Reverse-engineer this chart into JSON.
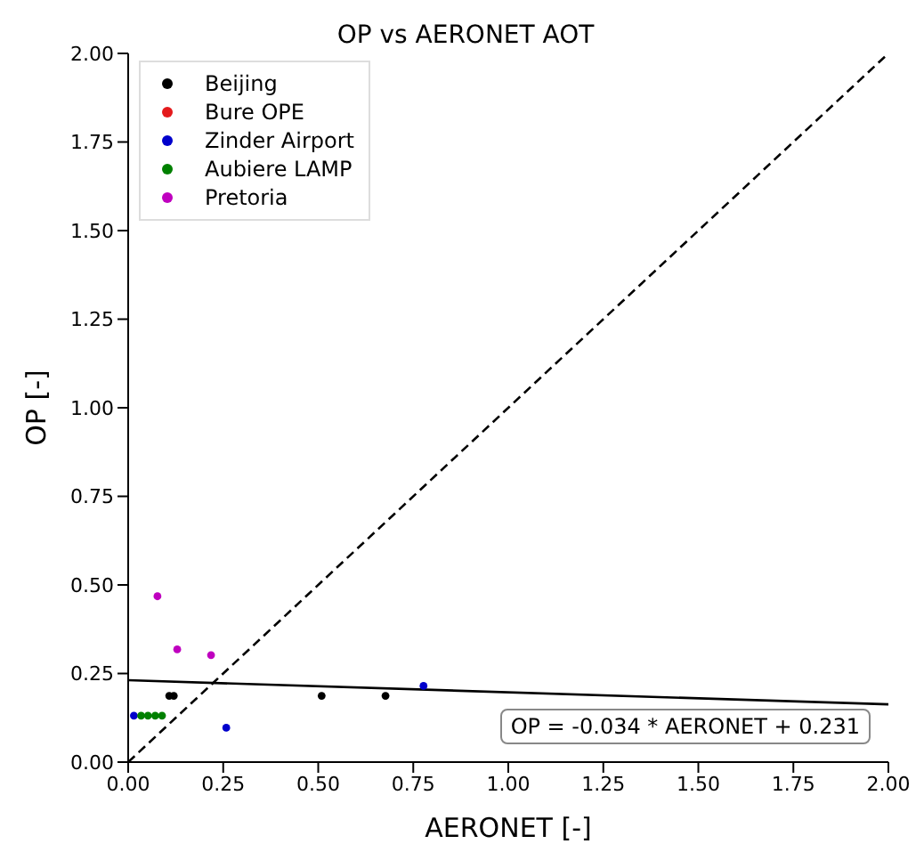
{
  "chart_data": {
    "type": "scatter",
    "title": "OP vs AERONET AOT",
    "xlabel": "AERONET [-]",
    "ylabel": "OP [-]",
    "xlim": [
      0,
      2
    ],
    "ylim": [
      0,
      2
    ],
    "xticks": [
      {
        "value": 0,
        "label": "0.00"
      },
      {
        "value": 0.25,
        "label": "0.25"
      },
      {
        "value": 0.5,
        "label": "0.50"
      },
      {
        "value": 0.75,
        "label": "0.75"
      },
      {
        "value": 1,
        "label": "1.00"
      },
      {
        "value": 1.25,
        "label": "1.25"
      },
      {
        "value": 1.5,
        "label": "1.50"
      },
      {
        "value": 1.75,
        "label": "1.75"
      },
      {
        "value": 2,
        "label": "2.00"
      }
    ],
    "yticks": [
      {
        "value": 0,
        "label": "0.00"
      },
      {
        "value": 0.25,
        "label": "0.25"
      },
      {
        "value": 0.5,
        "label": "0.50"
      },
      {
        "value": 0.75,
        "label": "0.75"
      },
      {
        "value": 1,
        "label": "1.00"
      },
      {
        "value": 1.25,
        "label": "1.25"
      },
      {
        "value": 1.5,
        "label": "1.50"
      },
      {
        "value": 1.75,
        "label": "1.75"
      },
      {
        "value": 2,
        "label": "2.00"
      }
    ],
    "grid": false,
    "legend": "top left",
    "marker": "circle",
    "annotations": [
      "OP = -0.034 * AERONET + 0.231"
    ],
    "series": [
      {
        "name": "Beijing",
        "color": "#000000",
        "x": [
          0.108,
          0.12,
          0.509,
          0.677
        ],
        "values": [
          0.187,
          0.187,
          0.187,
          0.187
        ]
      },
      {
        "name": "Bure OPE",
        "color": "#e41a1c"
      },
      {
        "name": "Zinder Airport",
        "color": "#0000cc",
        "x": [
          0.015,
          0.258,
          0.777
        ],
        "values": [
          0.131,
          0.097,
          0.215
        ]
      },
      {
        "name": "Aubiere LAMP",
        "color": "#008000",
        "x": [
          0.034,
          0.052,
          0.071,
          0.089
        ],
        "values": [
          0.131,
          0.131,
          0.131,
          0.131
        ]
      },
      {
        "name": "Pretoria",
        "color": "#bf00bf",
        "x": [
          0.077,
          0.129,
          0.218
        ],
        "values": [
          0.468,
          0.318,
          0.302
        ]
      },
      {
        "type": "line",
        "color": "#000000",
        "line_style": "solid",
        "marker": "none",
        "x": [
          0,
          2
        ],
        "values": [
          0.231,
          0.163
        ]
      },
      {
        "type": "line",
        "color": "#000000",
        "line_style": "dashed",
        "marker": "none",
        "x": [
          0,
          2
        ],
        "values": [
          0,
          2
        ]
      }
    ]
  }
}
